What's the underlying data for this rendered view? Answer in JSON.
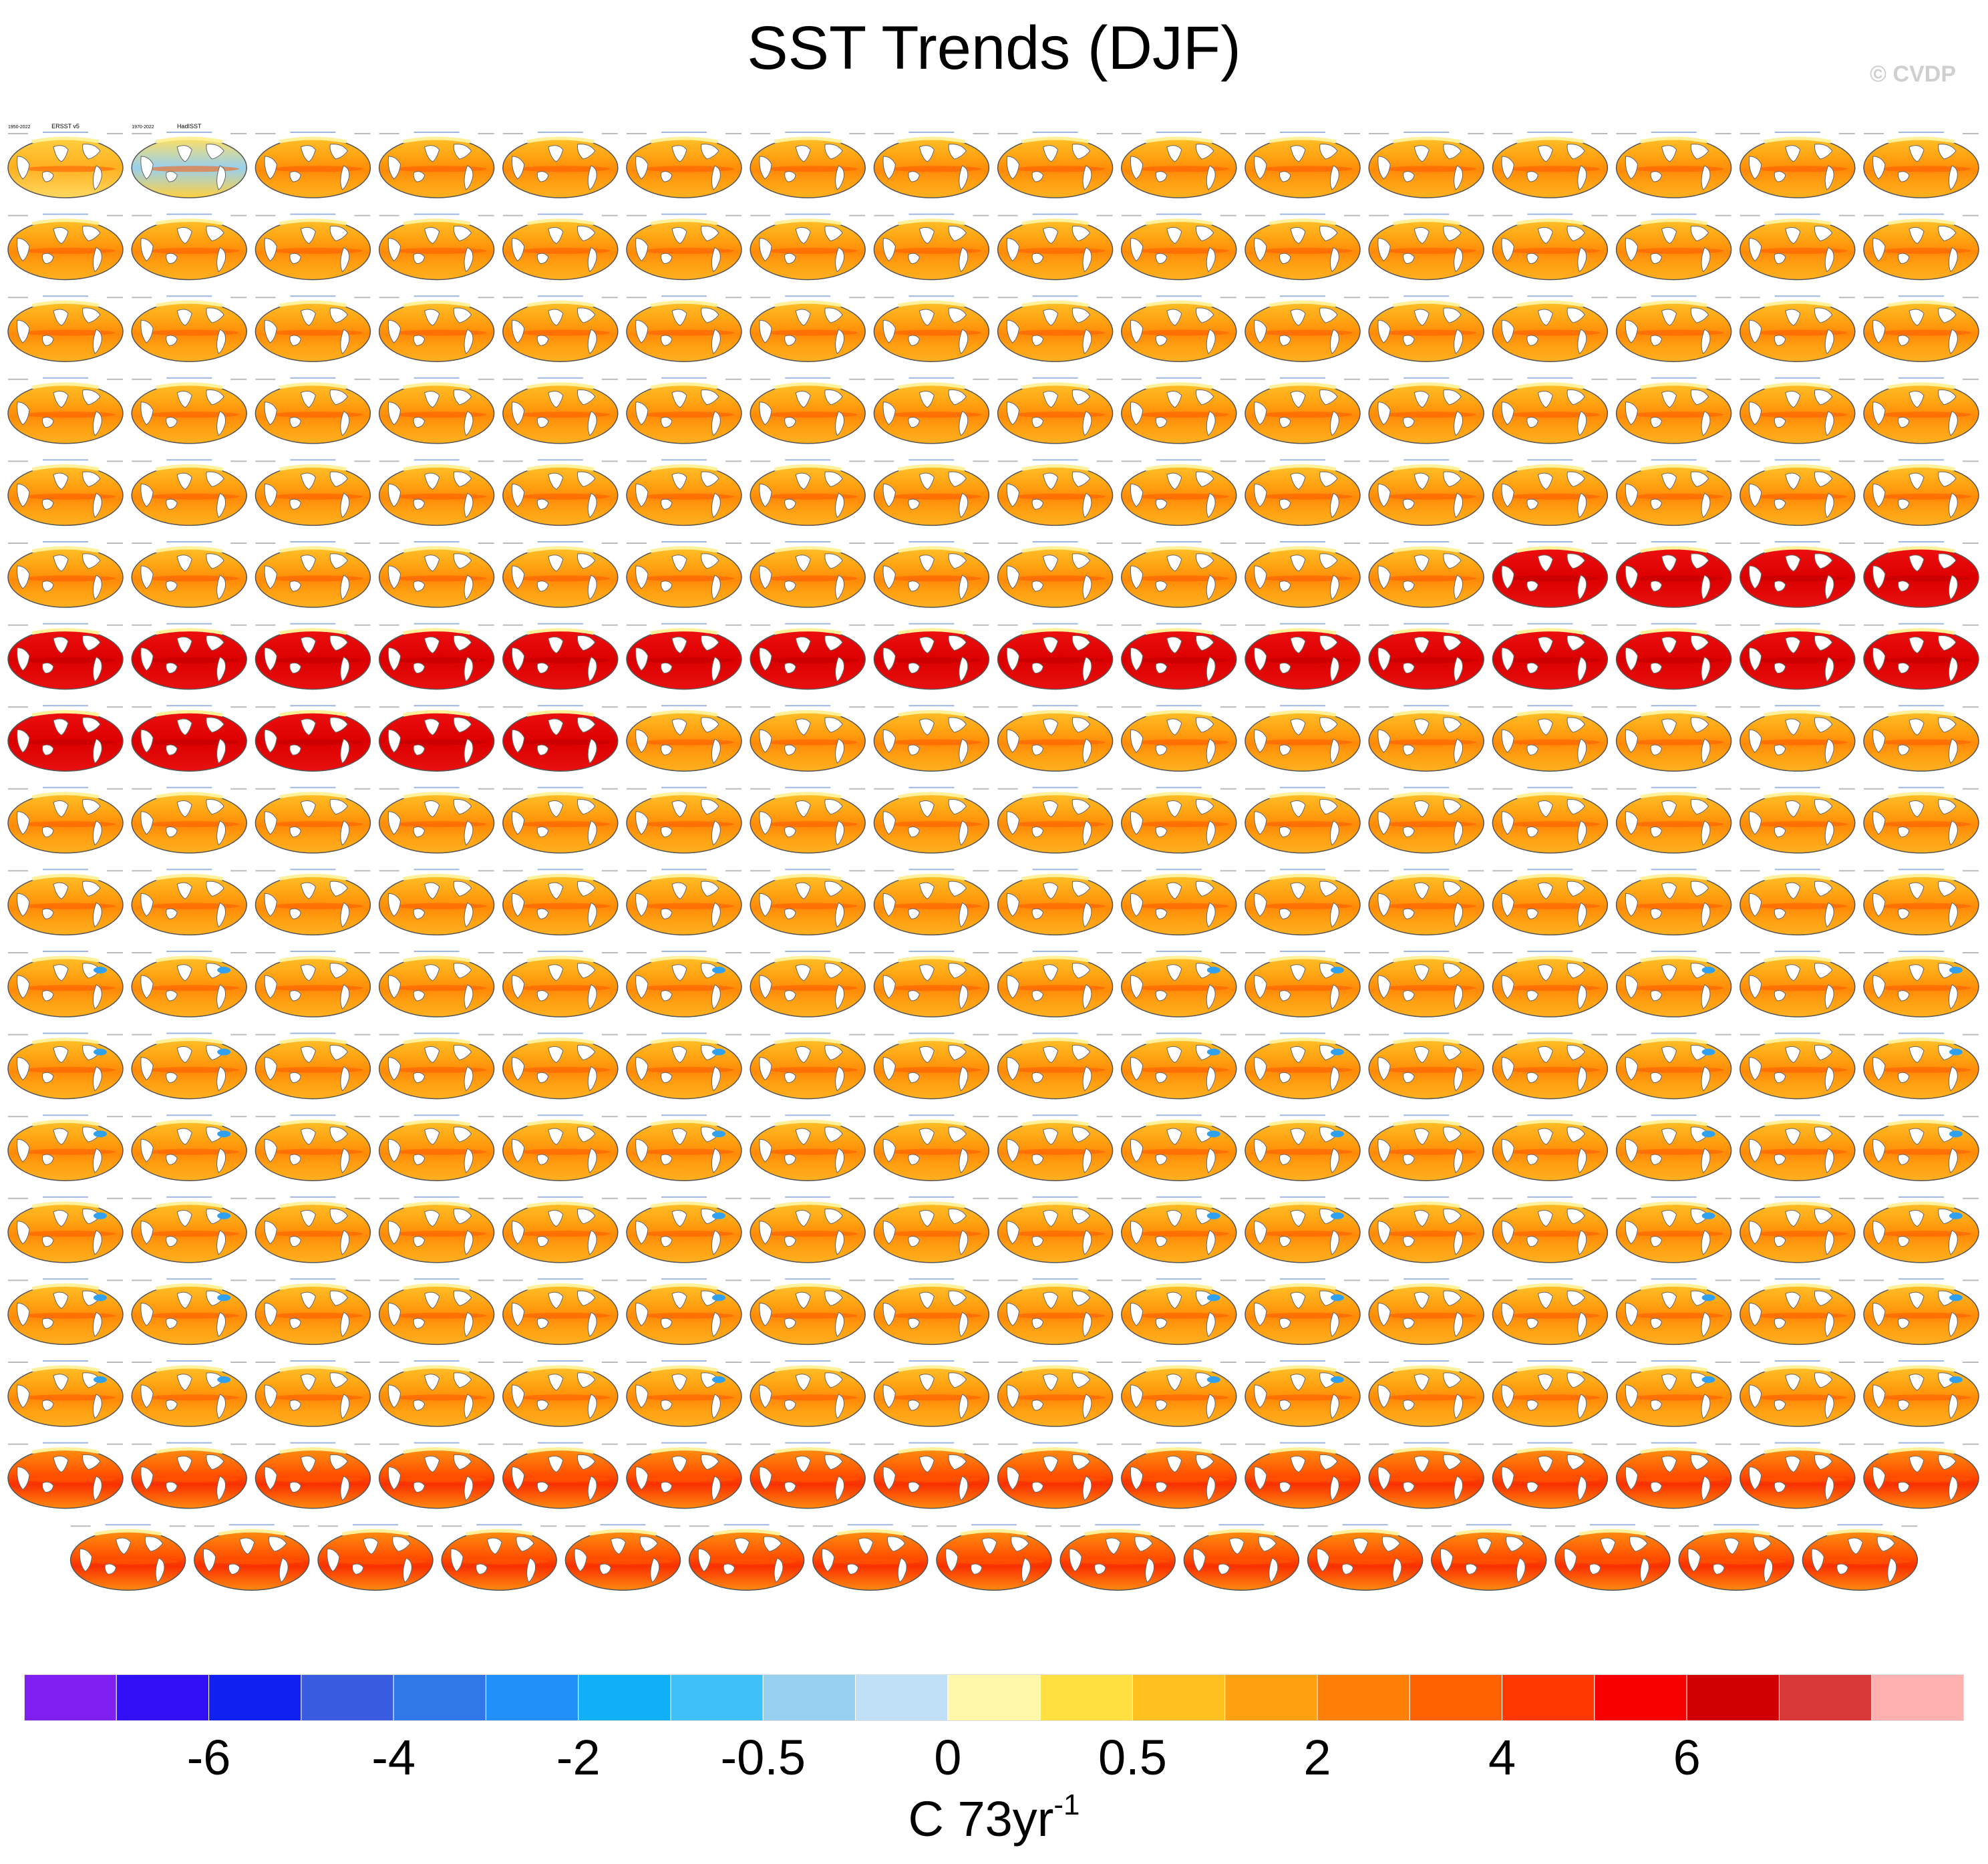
{
  "title": "SST Trends (DJF)",
  "watermark": "© CVDP",
  "chart_data": {
    "type": "heatmap",
    "title": "SST Trends (DJF)",
    "description_panels": "Small-multiple grid of global SST trend maps (DJF), 18 rows; rows 1–17 have 16 panels, row 18 has 15 centered panels",
    "grid": {
      "rows": 18,
      "cols": 16,
      "last_row_cols": 15
    },
    "panels_first_row": [
      {
        "label": "ERSST v5",
        "period": "1950-2022",
        "style": "obs"
      },
      {
        "label": "HadISST",
        "period": "1970-2022",
        "style": "obs"
      }
    ],
    "panel_style_by_row": [
      "mixed",
      "orange",
      "orange",
      "orange",
      "orange",
      "orange-red",
      "red",
      "red-then-orange",
      "orange",
      "orange",
      "orange-blue",
      "orange-blue",
      "orange-blue",
      "orange-blue",
      "orange-blue",
      "orange-blue",
      "red-orange",
      "red-orange"
    ],
    "colorbar": {
      "colors": [
        "#8020f0",
        "#3210f5",
        "#1020f0",
        "#3a5ce0",
        "#3078e8",
        "#2090f8",
        "#10b0f8",
        "#40c0f8",
        "#98d0f0",
        "#c0e0f8",
        "#fff8a8",
        "#ffe040",
        "#ffc020",
        "#ffa010",
        "#ff8008",
        "#ff6000",
        "#ff3800",
        "#f80000",
        "#d00000",
        "#d83838",
        "#ffb0b0"
      ],
      "tick_labels": [
        "-6",
        "-4",
        "-2",
        "-0.5",
        "0",
        "0.5",
        "2",
        "4",
        "6"
      ],
      "units_base": "C 73yr",
      "units_sup": "-1"
    }
  }
}
